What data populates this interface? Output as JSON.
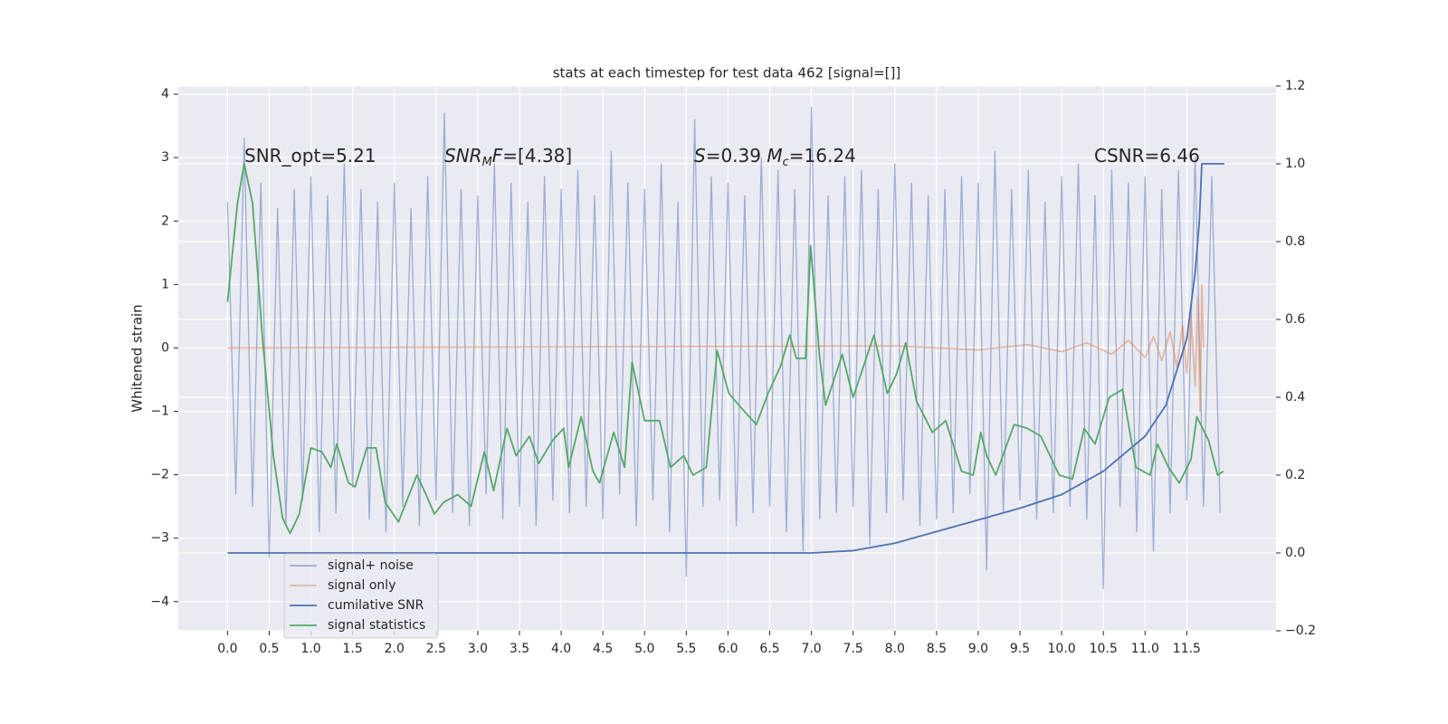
{
  "chart_data": {
    "type": "line",
    "title": "stats at each timestep for test data 462 [signal=[]]",
    "ylabel": "Whitened strain",
    "xlim": [
      -0.59,
      12.57
    ],
    "ylim": [
      -4.46,
      4.13
    ],
    "y2lim": [
      -0.2,
      1.2
    ],
    "xticks": [
      {
        "value": 0,
        "label": "0.0"
      },
      {
        "value": 0.5,
        "label": "0.5"
      },
      {
        "value": 1,
        "label": "1.0"
      },
      {
        "value": 1.5,
        "label": "1.5"
      },
      {
        "value": 2,
        "label": "2.0"
      },
      {
        "value": 2.5,
        "label": "2.5"
      },
      {
        "value": 3,
        "label": "3.0"
      },
      {
        "value": 3.5,
        "label": "3.5"
      },
      {
        "value": 4,
        "label": "4.0"
      },
      {
        "value": 4.5,
        "label": "4.5"
      },
      {
        "value": 5,
        "label": "5.0"
      },
      {
        "value": 5.5,
        "label": "5.5"
      },
      {
        "value": 6,
        "label": "6.0"
      },
      {
        "value": 6.5,
        "label": "6.5"
      },
      {
        "value": 7,
        "label": "7.0"
      },
      {
        "value": 7.5,
        "label": "7.5"
      },
      {
        "value": 8,
        "label": "8.0"
      },
      {
        "value": 8.5,
        "label": "8.5"
      },
      {
        "value": 9,
        "label": "9.0"
      },
      {
        "value": 9.5,
        "label": "9.5"
      },
      {
        "value": 10,
        "label": "10.0"
      },
      {
        "value": 10.5,
        "label": "10.5"
      },
      {
        "value": 11,
        "label": "11.0"
      },
      {
        "value": 11.5,
        "label": "11.5"
      }
    ],
    "yticks": [
      {
        "value": -4,
        "label": "−4"
      },
      {
        "value": -3,
        "label": "−3"
      },
      {
        "value": -2,
        "label": "−2"
      },
      {
        "value": -1,
        "label": "−1"
      },
      0,
      1,
      2,
      3,
      4
    ],
    "y2ticks": [
      {
        "value": -0.2,
        "label": "−0.2"
      },
      {
        "value": 0,
        "label": "0.0"
      },
      0.2,
      0.4,
      0.6,
      0.8,
      {
        "value": 1,
        "label": "1.0"
      },
      1.2
    ],
    "grid": true,
    "legend": "lower left",
    "annotations": [
      {
        "parts": [
          {
            "text": "SNR_opt=5.21"
          }
        ]
      },
      {
        "parts": [
          {
            "text": "SNR",
            "italic": true
          },
          {
            "text": "M",
            "italic": true,
            "sub": true
          },
          {
            "text": "F",
            "italic": true
          },
          {
            "text": "=[4.38]"
          }
        ]
      },
      {
        "parts": [
          {
            "text": "S",
            "italic": true
          },
          {
            "text": "=0.39   "
          },
          {
            "text": "M",
            "italic": true
          },
          {
            "text": "c",
            "italic": true,
            "sub": true
          },
          {
            "text": "=16.24"
          }
        ]
      },
      {
        "parts": [
          {
            "text": "CSNR=6.46"
          }
        ]
      }
    ],
    "series": [
      {
        "name": "signal+ noise",
        "color": "#4c72b0",
        "alpha": 0.5,
        "x": [
          0,
          0.1,
          0.2,
          0.3,
          0.4,
          0.5,
          0.6,
          0.7,
          0.8,
          0.9,
          1,
          1.1,
          1.2,
          1.3,
          1.4,
          1.5,
          1.6,
          1.7,
          1.8,
          1.9,
          2,
          2.1,
          2.2,
          2.3,
          2.4,
          2.5,
          2.6,
          2.7,
          2.8,
          2.9,
          3,
          3.1,
          3.2,
          3.3,
          3.4,
          3.5,
          3.6,
          3.7,
          3.8,
          3.9,
          4,
          4.1,
          4.2,
          4.3,
          4.4,
          4.5,
          4.6,
          4.7,
          4.8,
          4.9,
          5,
          5.1,
          5.2,
          5.3,
          5.4,
          5.5,
          5.6,
          5.7,
          5.8,
          5.9,
          6,
          6.1,
          6.2,
          6.3,
          6.4,
          6.5,
          6.6,
          6.7,
          6.8,
          6.9,
          7,
          7.1,
          7.2,
          7.3,
          7.4,
          7.5,
          7.6,
          7.7,
          7.8,
          7.9,
          8,
          8.1,
          8.2,
          8.3,
          8.4,
          8.5,
          8.6,
          8.7,
          8.8,
          8.9,
          9,
          9.1,
          9.2,
          9.3,
          9.4,
          9.5,
          9.6,
          9.7,
          9.8,
          9.9,
          10,
          10.1,
          10.2,
          10.3,
          10.4,
          10.5,
          10.6,
          10.7,
          10.8,
          10.9,
          11,
          11.1,
          11.2,
          11.3,
          11.4,
          11.5,
          11.6,
          11.7,
          11.8,
          11.9
        ],
        "values": [
          2.3,
          -2.3,
          3.3,
          -2.5,
          2.6,
          -3.3,
          2.2,
          -2.8,
          2.5,
          -2.4,
          2.7,
          -2.9,
          2.4,
          -2.6,
          2.9,
          -2.2,
          2.5,
          -2.7,
          2.3,
          -2.9,
          2.6,
          -2.5,
          2.2,
          -2.8,
          2.7,
          -2.4,
          3.7,
          -2.6,
          2.5,
          -2.8,
          2.4,
          -2.3,
          2.9,
          -2.7,
          2.6,
          -2.5,
          2.3,
          -2.8,
          2.7,
          -2.4,
          2.5,
          -2.6,
          2.8,
          -2.5,
          2.4,
          -2.7,
          3.1,
          -2.3,
          2.6,
          -2.8,
          2.5,
          -2.4,
          2.9,
          -2.9,
          2.3,
          -3.6,
          3.6,
          -2.5,
          2.7,
          -2.4,
          2.6,
          -2.8,
          2.4,
          -2.6,
          3.0,
          -2.5,
          2.8,
          -2.9,
          2.5,
          -3.2,
          3.8,
          -2.7,
          2.4,
          -2.6,
          2.7,
          -2.5,
          2.8,
          -3.1,
          2.5,
          -2.6,
          2.9,
          -2.4,
          2.6,
          -2.8,
          2.4,
          -2.7,
          2.5,
          -2.6,
          2.7,
          -2.3,
          2.6,
          -3.5,
          3.1,
          -2.6,
          2.5,
          -2.4,
          2.8,
          -2.7,
          2.3,
          -2.6,
          2.7,
          -2.5,
          2.9,
          -2.7,
          2.4,
          -3.8,
          2.8,
          -2.5,
          2.6,
          -2.9,
          2.7,
          -3.2,
          2.5,
          -2.6,
          2.8,
          -2.4,
          3.0,
          -2.5,
          2.7,
          -2.6
        ]
      },
      {
        "name": "signal only",
        "color": "#dd8452",
        "alpha": 0.5,
        "x": [
          0,
          8,
          9,
          9.6,
          10,
          10.3,
          10.6,
          10.8,
          11,
          11.1,
          11.2,
          11.3,
          11.38,
          11.45,
          11.5,
          11.55,
          11.6,
          11.63,
          11.66,
          11.68,
          11.7
        ],
        "values": [
          0,
          0.03,
          -0.03,
          0.05,
          -0.06,
          0.08,
          -0.1,
          0.12,
          -0.15,
          0.18,
          -0.2,
          0.25,
          -0.3,
          0.35,
          -0.4,
          0.5,
          -0.6,
          0.8,
          -1.0,
          1.0,
          0
        ]
      },
      {
        "name": "cumilative SNR",
        "color": "#4c72b0",
        "axis": "y2",
        "x": [
          0,
          7,
          7.5,
          8,
          8.5,
          9,
          9.5,
          10,
          10.5,
          11,
          11.25,
          11.5,
          11.6,
          11.65,
          11.68,
          11.95
        ],
        "values": [
          0,
          0,
          0.006,
          0.025,
          0.055,
          0.085,
          0.115,
          0.15,
          0.21,
          0.3,
          0.38,
          0.55,
          0.72,
          0.85,
          1.0,
          1.0
        ]
      },
      {
        "name": "signal statistics",
        "color": "#55a868",
        "axis": "y2",
        "x": [
          0,
          0.12,
          0.2,
          0.3,
          0.42,
          0.55,
          0.66,
          0.75,
          0.86,
          1,
          1.13,
          1.24,
          1.31,
          1.45,
          1.53,
          1.67,
          1.78,
          1.89,
          2.05,
          2.27,
          2.38,
          2.48,
          2.59,
          2.76,
          2.92,
          3.08,
          3.19,
          3.35,
          3.46,
          3.62,
          3.73,
          3.9,
          4.03,
          4.09,
          4.24,
          4.38,
          4.46,
          4.63,
          4.76,
          4.85,
          5,
          5.18,
          5.31,
          5.47,
          5.58,
          5.74,
          5.87,
          6.01,
          6.17,
          6.34,
          6.48,
          6.63,
          6.74,
          6.82,
          6.93,
          6.99,
          7.1,
          7.17,
          7.37,
          7.5,
          7.75,
          7.91,
          8.02,
          8.13,
          8.26,
          8.45,
          8.61,
          8.8,
          8.94,
          9.03,
          9.1,
          9.21,
          9.43,
          9.59,
          9.75,
          9.97,
          10.13,
          10.27,
          10.4,
          10.57,
          10.73,
          10.89,
          11.06,
          11.15,
          11.28,
          11.41,
          11.55,
          11.62,
          11.76,
          11.87,
          11.94
        ],
        "values": [
          0.645,
          0.9,
          1.0,
          0.9,
          0.55,
          0.25,
          0.09,
          0.05,
          0.1,
          0.27,
          0.26,
          0.22,
          0.28,
          0.18,
          0.17,
          0.27,
          0.27,
          0.13,
          0.08,
          0.2,
          0.15,
          0.1,
          0.13,
          0.15,
          0.12,
          0.26,
          0.16,
          0.32,
          0.25,
          0.3,
          0.23,
          0.29,
          0.32,
          0.22,
          0.35,
          0.21,
          0.18,
          0.31,
          0.22,
          0.49,
          0.34,
          0.34,
          0.22,
          0.25,
          0.2,
          0.22,
          0.52,
          0.41,
          0.37,
          0.33,
          0.41,
          0.48,
          0.56,
          0.5,
          0.5,
          0.79,
          0.5,
          0.38,
          0.51,
          0.4,
          0.56,
          0.41,
          0.46,
          0.54,
          0.39,
          0.31,
          0.34,
          0.21,
          0.2,
          0.31,
          0.25,
          0.2,
          0.33,
          0.32,
          0.3,
          0.2,
          0.19,
          0.32,
          0.28,
          0.4,
          0.42,
          0.22,
          0.2,
          0.28,
          0.22,
          0.18,
          0.24,
          0.35,
          0.29,
          0.2,
          0.21
        ]
      }
    ]
  }
}
